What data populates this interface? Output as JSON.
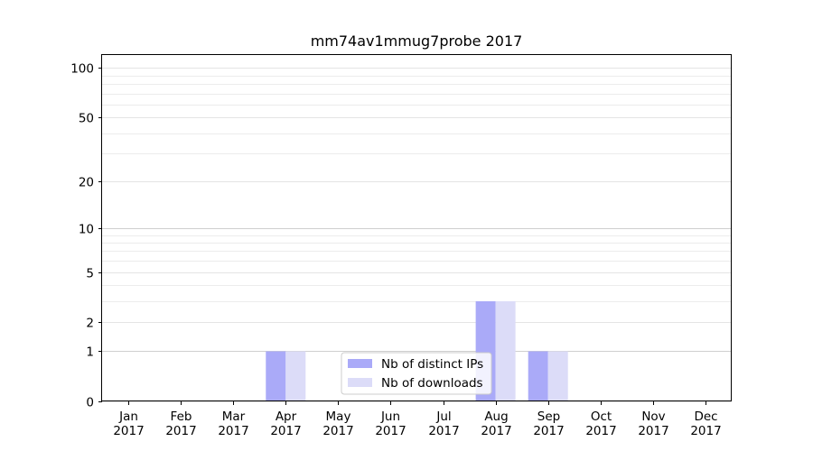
{
  "chart_data": {
    "type": "bar",
    "title": "mm74av1mmug7probe 2017",
    "xlabel": "",
    "ylabel": "",
    "y_scale": "symlog",
    "ylim": [
      0,
      120
    ],
    "grid": "horizontal",
    "legend_position": "lower-center",
    "categories": [
      {
        "month": "Jan",
        "year": "2017"
      },
      {
        "month": "Feb",
        "year": "2017"
      },
      {
        "month": "Mar",
        "year": "2017"
      },
      {
        "month": "Apr",
        "year": "2017"
      },
      {
        "month": "May",
        "year": "2017"
      },
      {
        "month": "Jun",
        "year": "2017"
      },
      {
        "month": "Jul",
        "year": "2017"
      },
      {
        "month": "Aug",
        "year": "2017"
      },
      {
        "month": "Sep",
        "year": "2017"
      },
      {
        "month": "Oct",
        "year": "2017"
      },
      {
        "month": "Nov",
        "year": "2017"
      },
      {
        "month": "Dec",
        "year": "2017"
      }
    ],
    "y_ticks": [
      "0",
      "1",
      "2",
      "5",
      "10",
      "20",
      "50",
      "100"
    ],
    "series": [
      {
        "name": "Nb of distinct IPs",
        "color": "#aaaaf8",
        "values": [
          0,
          0,
          0,
          1,
          0,
          0,
          0,
          3,
          1,
          0,
          0,
          0
        ]
      },
      {
        "name": "Nb of downloads",
        "color": "#dcdcf8",
        "values": [
          0,
          0,
          0,
          1,
          0,
          0,
          0,
          3,
          1,
          0,
          0,
          0
        ]
      }
    ]
  }
}
